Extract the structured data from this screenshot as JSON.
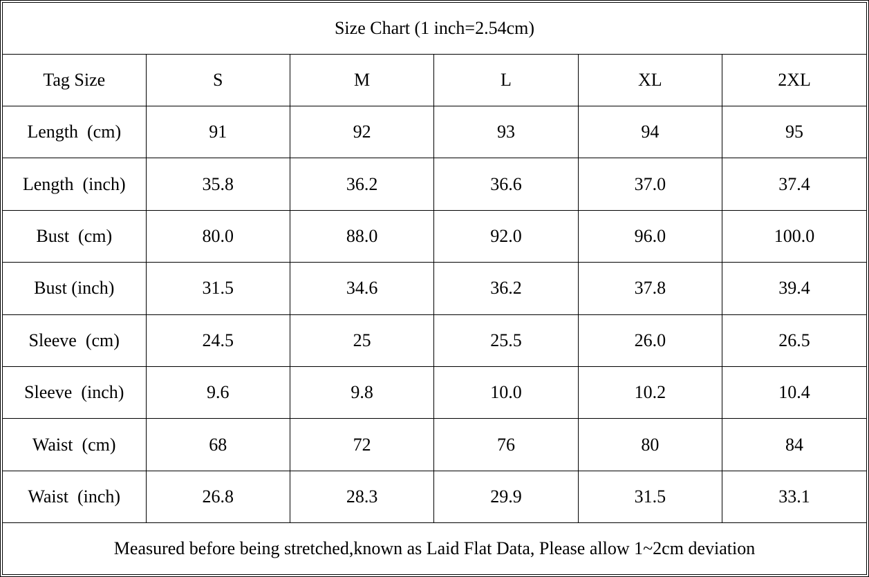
{
  "table": {
    "title": "Size Chart (1 inch=2.54cm)",
    "header": [
      "Tag Size",
      "S",
      "M",
      "L",
      "XL",
      "2XL"
    ],
    "rows": [
      [
        "Length  (cm)",
        "91",
        "92",
        "93",
        "94",
        "95"
      ],
      [
        "Length  (inch)",
        "35.8",
        "36.2",
        "36.6",
        "37.0",
        "37.4"
      ],
      [
        "Bust  (cm)",
        "80.0",
        "88.0",
        "92.0",
        "96.0",
        "100.0"
      ],
      [
        "Bust (inch)",
        "31.5",
        "34.6",
        "36.2",
        "37.8",
        "39.4"
      ],
      [
        "Sleeve  (cm)",
        "24.5",
        "25",
        "25.5",
        "26.0",
        "26.5"
      ],
      [
        "Sleeve  (inch)",
        "9.6",
        "9.8",
        "10.0",
        "10.2",
        "10.4"
      ],
      [
        "Waist  (cm)",
        "68",
        "72",
        "76",
        "80",
        "84"
      ],
      [
        "Waist  (inch)",
        "26.8",
        "28.3",
        "29.9",
        "31.5",
        "33.1"
      ]
    ],
    "footer": "Measured before being stretched,known as Laid Flat Data, Please allow 1~2cm deviation"
  }
}
